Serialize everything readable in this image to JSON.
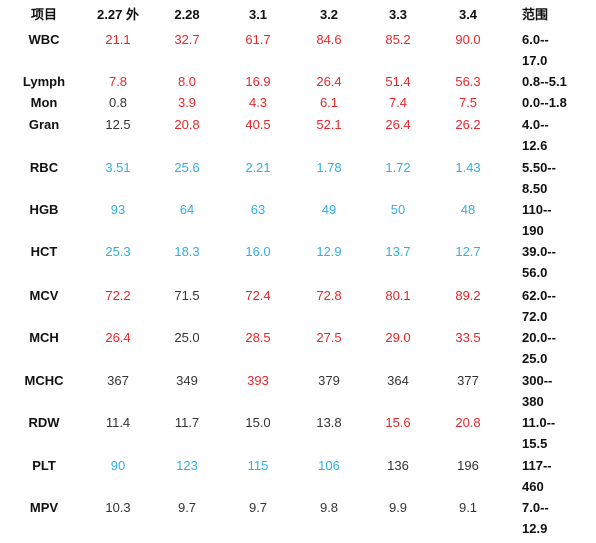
{
  "table": {
    "header": [
      "项目",
      "2.27 外",
      "2.28",
      "3.1",
      "3.2",
      "3.3",
      "3.4",
      "范围"
    ],
    "palette": {
      "red": "#e8262a",
      "blue": "#2fb0e6",
      "black": "#333333"
    },
    "rows": [
      {
        "label": "WBC",
        "values": [
          "21.1",
          "32.7",
          "61.7",
          "84.6",
          "85.2",
          "90.0"
        ],
        "tones": [
          "red",
          "red",
          "red",
          "red",
          "red",
          "red"
        ],
        "range": [
          "6.0--",
          "17.0"
        ]
      },
      {
        "label": "Lymph",
        "values": [
          "7.8",
          "8.0",
          "16.9",
          "26.4",
          "51.4",
          "56.3"
        ],
        "tones": [
          "red",
          "red",
          "red",
          "red",
          "red",
          "red"
        ],
        "range": [
          "0.8--5.1"
        ]
      },
      {
        "label": "Mon",
        "values": [
          "0.8",
          "3.9",
          "4.3",
          "6.1",
          "7.4",
          "7.5"
        ],
        "tones": [
          "black",
          "red",
          "red",
          "red",
          "red",
          "red"
        ],
        "range": [
          "0.0--1.8"
        ]
      },
      {
        "label": "Gran",
        "values": [
          "12.5",
          "20.8",
          "40.5",
          "52.1",
          "26.4",
          "26.2"
        ],
        "tones": [
          "black",
          "red",
          "red",
          "red",
          "red",
          "red"
        ],
        "range": [
          "4.0--",
          "12.6"
        ]
      },
      {
        "label": "RBC",
        "values": [
          "3.51",
          "25.6",
          "2.21",
          "1.78",
          "1.72",
          "1.43"
        ],
        "tones": [
          "blue",
          "blue",
          "blue",
          "blue",
          "blue",
          "blue"
        ],
        "range": [
          "5.50--",
          "8.50"
        ]
      },
      {
        "label": "HGB",
        "values": [
          "93",
          "64",
          "63",
          "49",
          "50",
          "48"
        ],
        "tones": [
          "blue",
          "blue",
          "blue",
          "blue",
          "blue",
          "blue"
        ],
        "range": [
          "110--",
          "190"
        ]
      },
      {
        "label": "HCT",
        "values": [
          "25.3",
          "18.3",
          "16.0",
          "12.9",
          "13.7",
          "12.7"
        ],
        "tones": [
          "blue",
          "blue",
          "blue",
          "blue",
          "blue",
          "blue"
        ],
        "range": [
          "39.0--",
          "56.0"
        ]
      },
      {
        "label": "MCV",
        "values": [
          "72.2",
          "71.5",
          "72.4",
          "72.8",
          "80.1",
          "89.2"
        ],
        "tones": [
          "red",
          "black",
          "red",
          "red",
          "red",
          "red"
        ],
        "range": [
          "62.0--",
          "72.0"
        ]
      },
      {
        "label": "MCH",
        "values": [
          "26.4",
          "25.0",
          "28.5",
          "27.5",
          "29.0",
          "33.5"
        ],
        "tones": [
          "red",
          "black",
          "red",
          "red",
          "red",
          "red"
        ],
        "range": [
          "20.0--",
          "25.0"
        ]
      },
      {
        "label": "MCHC",
        "values": [
          "367",
          "349",
          "393",
          "379",
          "364",
          "377"
        ],
        "tones": [
          "black",
          "black",
          "red",
          "black",
          "black",
          "black"
        ],
        "range": [
          "300--",
          "380"
        ]
      },
      {
        "label": "RDW",
        "values": [
          "11.4",
          "11.7",
          "15.0",
          "13.8",
          "15.6",
          "20.8"
        ],
        "tones": [
          "black",
          "black",
          "black",
          "black",
          "red",
          "red"
        ],
        "range": [
          "11.0--",
          "15.5"
        ]
      },
      {
        "label": "PLT",
        "values": [
          "90",
          "123",
          "115",
          "106",
          "136",
          "196"
        ],
        "tones": [
          "blue",
          "blue",
          "blue",
          "blue",
          "black",
          "black"
        ],
        "range": [
          "117--",
          "460"
        ]
      },
      {
        "label": "MPV",
        "values": [
          "10.3",
          "9.7",
          "9.7",
          "9.8",
          "9.9",
          "9.1"
        ],
        "tones": [
          "black",
          "black",
          "black",
          "black",
          "black",
          "black"
        ],
        "range": [
          "7.0--",
          "12.9"
        ]
      }
    ]
  }
}
